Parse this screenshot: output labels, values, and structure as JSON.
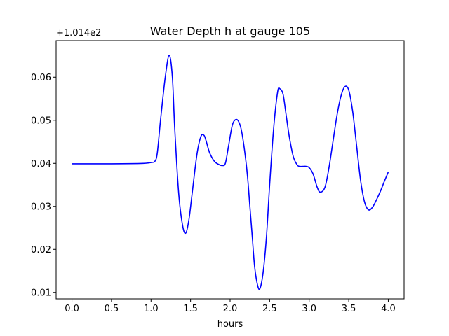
{
  "chart_data": {
    "type": "line",
    "title": "Water Depth h at gauge 105",
    "xlabel": "hours",
    "ylabel": "",
    "y_offset_text": "+1.014e2",
    "xlim": [
      -0.2,
      4.2
    ],
    "ylim": [
      0.0085,
      0.0685
    ],
    "x_ticks": [
      0.0,
      0.5,
      1.0,
      1.5,
      2.0,
      2.5,
      3.0,
      3.5,
      4.0
    ],
    "x_tick_labels": [
      "0.0",
      "0.5",
      "1.0",
      "1.5",
      "2.0",
      "2.5",
      "3.0",
      "3.5",
      "4.0"
    ],
    "y_ticks": [
      0.01,
      0.02,
      0.03,
      0.04,
      0.05,
      0.06
    ],
    "y_tick_labels": [
      "0.01",
      "0.02",
      "0.03",
      "0.04",
      "0.05",
      "0.06"
    ],
    "grid": false,
    "series": [
      {
        "color": "#0000ff",
        "x": [
          0.0,
          0.5,
          0.9,
          1.0,
          1.05,
          1.08,
          1.12,
          1.18,
          1.23,
          1.27,
          1.3,
          1.35,
          1.4,
          1.44,
          1.48,
          1.52,
          1.58,
          1.63,
          1.67,
          1.7,
          1.74,
          1.8,
          1.85,
          1.9,
          1.94,
          1.98,
          2.03,
          2.08,
          2.12,
          2.15,
          2.19,
          2.22,
          2.25,
          2.28,
          2.31,
          2.35,
          2.38,
          2.42,
          2.46,
          2.5,
          2.55,
          2.6,
          2.63,
          2.67,
          2.71,
          2.75,
          2.8,
          2.85,
          2.88,
          2.92,
          2.96,
          3.0,
          3.05,
          3.1,
          3.14,
          3.2,
          3.25,
          3.3,
          3.35,
          3.4,
          3.45,
          3.5,
          3.55,
          3.6,
          3.65,
          3.7,
          3.75,
          3.8,
          3.85,
          3.9,
          3.95,
          4.0
        ],
        "y": [
          0.0399,
          0.0399,
          0.04,
          0.0402,
          0.0405,
          0.0425,
          0.05,
          0.06,
          0.0651,
          0.06,
          0.048,
          0.033,
          0.0255,
          0.0238,
          0.027,
          0.033,
          0.042,
          0.0462,
          0.0465,
          0.045,
          0.0425,
          0.0405,
          0.0398,
          0.0395,
          0.04,
          0.044,
          0.049,
          0.0502,
          0.0492,
          0.047,
          0.042,
          0.037,
          0.03,
          0.023,
          0.016,
          0.0115,
          0.011,
          0.015,
          0.023,
          0.035,
          0.048,
          0.0565,
          0.0573,
          0.056,
          0.051,
          0.046,
          0.0415,
          0.0396,
          0.0393,
          0.0393,
          0.0393,
          0.039,
          0.0375,
          0.0345,
          0.0333,
          0.0345,
          0.039,
          0.045,
          0.051,
          0.0555,
          0.0578,
          0.057,
          0.052,
          0.044,
          0.036,
          0.031,
          0.0292,
          0.0298,
          0.0315,
          0.0335,
          0.0358,
          0.038
        ]
      }
    ]
  }
}
